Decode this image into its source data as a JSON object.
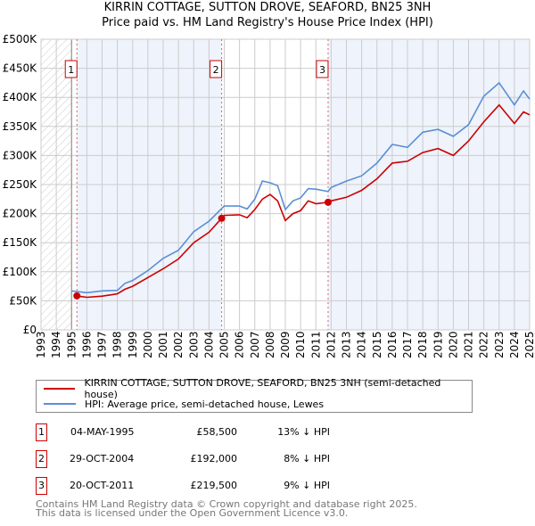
{
  "chart_data": {
    "type": "line",
    "title": "KIRRIN COTTAGE, SUTTON DROVE, SEAFORD, BN25 3NH",
    "subtitle": "Price paid vs. HM Land Registry's House Price Index (HPI)",
    "xlim": [
      1993,
      2025
    ],
    "ylim": [
      0,
      500000
    ],
    "x_ticks": [
      "1993",
      "1994",
      "1995",
      "1996",
      "1997",
      "1998",
      "1999",
      "2000",
      "2001",
      "2002",
      "2003",
      "2004",
      "2005",
      "2006",
      "2007",
      "2008",
      "2009",
      "2010",
      "2011",
      "2012",
      "2013",
      "2014",
      "2015",
      "2016",
      "2017",
      "2018",
      "2019",
      "2020",
      "2021",
      "2022",
      "2023",
      "2024",
      "2025"
    ],
    "y_ticks": [
      {
        "v": 0,
        "label": "£0"
      },
      {
        "v": 50000,
        "label": "£50K"
      },
      {
        "v": 100000,
        "label": "£100K"
      },
      {
        "v": 150000,
        "label": "£150K"
      },
      {
        "v": 200000,
        "label": "£200K"
      },
      {
        "v": 250000,
        "label": "£250K"
      },
      {
        "v": 300000,
        "label": "£300K"
      },
      {
        "v": 350000,
        "label": "£350K"
      },
      {
        "v": 400000,
        "label": "£400K"
      },
      {
        "v": 450000,
        "label": "£450K"
      },
      {
        "v": 500000,
        "label": "£500K"
      }
    ],
    "grid": true,
    "series": [
      {
        "name": "KIRRIN COTTAGE, SUTTON DROVE, SEAFORD, BN25 3NH (semi-detached house)",
        "color": "#cc0000",
        "x": [
          1995.35,
          1996,
          1997,
          1998,
          1998.5,
          1999,
          2000,
          2001,
          2002,
          2003,
          2004,
          2004.83,
          2005,
          2006,
          2006.5,
          2007,
          2007.5,
          2008,
          2008.5,
          2009,
          2009.5,
          2010,
          2010.5,
          2011,
          2011.8,
          2012,
          2013,
          2014,
          2015,
          2016,
          2017,
          2018,
          2019,
          2020,
          2021,
          2022,
          2023,
          2024,
          2024.6,
          2025
        ],
        "y": [
          58500,
          56000,
          58000,
          62000,
          70000,
          75000,
          90000,
          105000,
          122000,
          150000,
          168000,
          192000,
          197000,
          198000,
          193000,
          207000,
          225000,
          233000,
          222000,
          188000,
          200000,
          205000,
          222000,
          217000,
          219500,
          222000,
          228000,
          240000,
          260000,
          287000,
          290000,
          305000,
          312000,
          300000,
          325000,
          358000,
          387000,
          355000,
          375000,
          370000
        ]
      },
      {
        "name": "HPI: Average price, semi-detached house, Lewes",
        "color": "#5b8fd4",
        "x": [
          1995,
          1996,
          1997,
          1998,
          1998.5,
          1999,
          2000,
          2001,
          2002,
          2003,
          2004,
          2004.8,
          2005,
          2006,
          2006.5,
          2007,
          2007.5,
          2008,
          2008.5,
          2009,
          2009.5,
          2010,
          2010.5,
          2011,
          2011.8,
          2012,
          2013,
          2014,
          2015,
          2016,
          2017,
          2018,
          2019,
          2020,
          2021,
          2022,
          2023,
          2024,
          2024.6,
          2025
        ],
        "y": [
          67000,
          64000,
          67000,
          68000,
          80000,
          85000,
          102000,
          123000,
          137000,
          169000,
          187000,
          208000,
          213000,
          213000,
          208000,
          225000,
          256000,
          253000,
          248000,
          207000,
          222000,
          227000,
          243000,
          242000,
          238000,
          245000,
          256000,
          265000,
          287000,
          319000,
          314000,
          340000,
          345000,
          333000,
          353000,
          402000,
          425000,
          387000,
          411000,
          397000
        ]
      }
    ],
    "shaded_ranges": [
      [
        1995.35,
        2004.83
      ],
      [
        2011.8,
        2025
      ]
    ],
    "hatched_range": [
      1993,
      1995
    ],
    "markers": [
      {
        "label": "1",
        "x": 1995.35,
        "y": 58500
      },
      {
        "label": "2",
        "x": 2004.83,
        "y": 192000
      },
      {
        "label": "3",
        "x": 2011.8,
        "y": 219500
      }
    ]
  },
  "legend": {
    "property": "KIRRIN COTTAGE, SUTTON DROVE, SEAFORD, BN25 3NH (semi-detached house)",
    "hpi": "HPI: Average price, semi-detached house, Lewes"
  },
  "sales": [
    {
      "num": "1",
      "date": "04-MAY-1995",
      "price": "£58,500",
      "hpi": "13% ↓ HPI"
    },
    {
      "num": "2",
      "date": "29-OCT-2004",
      "price": "£192,000",
      "hpi": "8% ↓ HPI"
    },
    {
      "num": "3",
      "date": "20-OCT-2011",
      "price": "£219,500",
      "hpi": "9% ↓ HPI"
    }
  ],
  "footer": {
    "line1": "Contains HM Land Registry data © Crown copyright and database right 2025.",
    "line2": "This data is licensed under the Open Government Licence v3.0."
  }
}
